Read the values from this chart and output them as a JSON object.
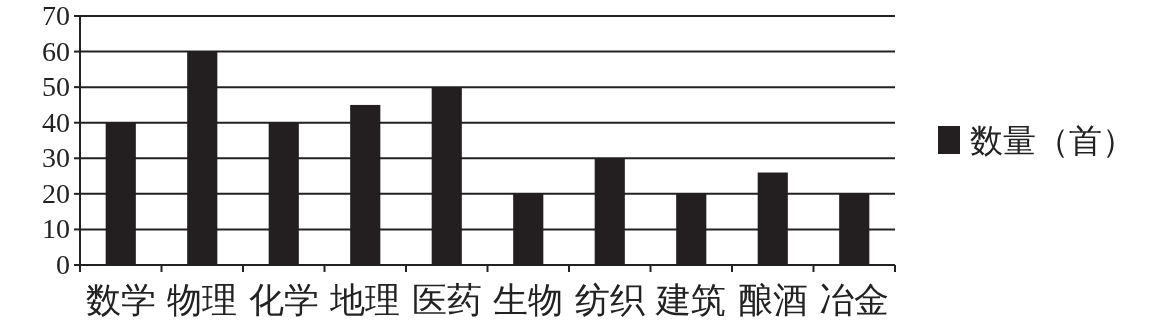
{
  "chart_data": {
    "type": "bar",
    "categories": [
      "数学",
      "物理",
      "化学",
      "地理",
      "医药",
      "生物",
      "纺织",
      "建筑",
      "酿酒",
      "冶金"
    ],
    "series": [
      {
        "name": "数量（首）",
        "color": "#231f20",
        "values": [
          40,
          60,
          40,
          45,
          50,
          20,
          30,
          20,
          26,
          20
        ]
      }
    ],
    "ylim": [
      0,
      70
    ],
    "yticks": [
      0,
      10,
      20,
      30,
      40,
      50,
      60,
      70
    ],
    "grid": "y",
    "legend": "right"
  }
}
